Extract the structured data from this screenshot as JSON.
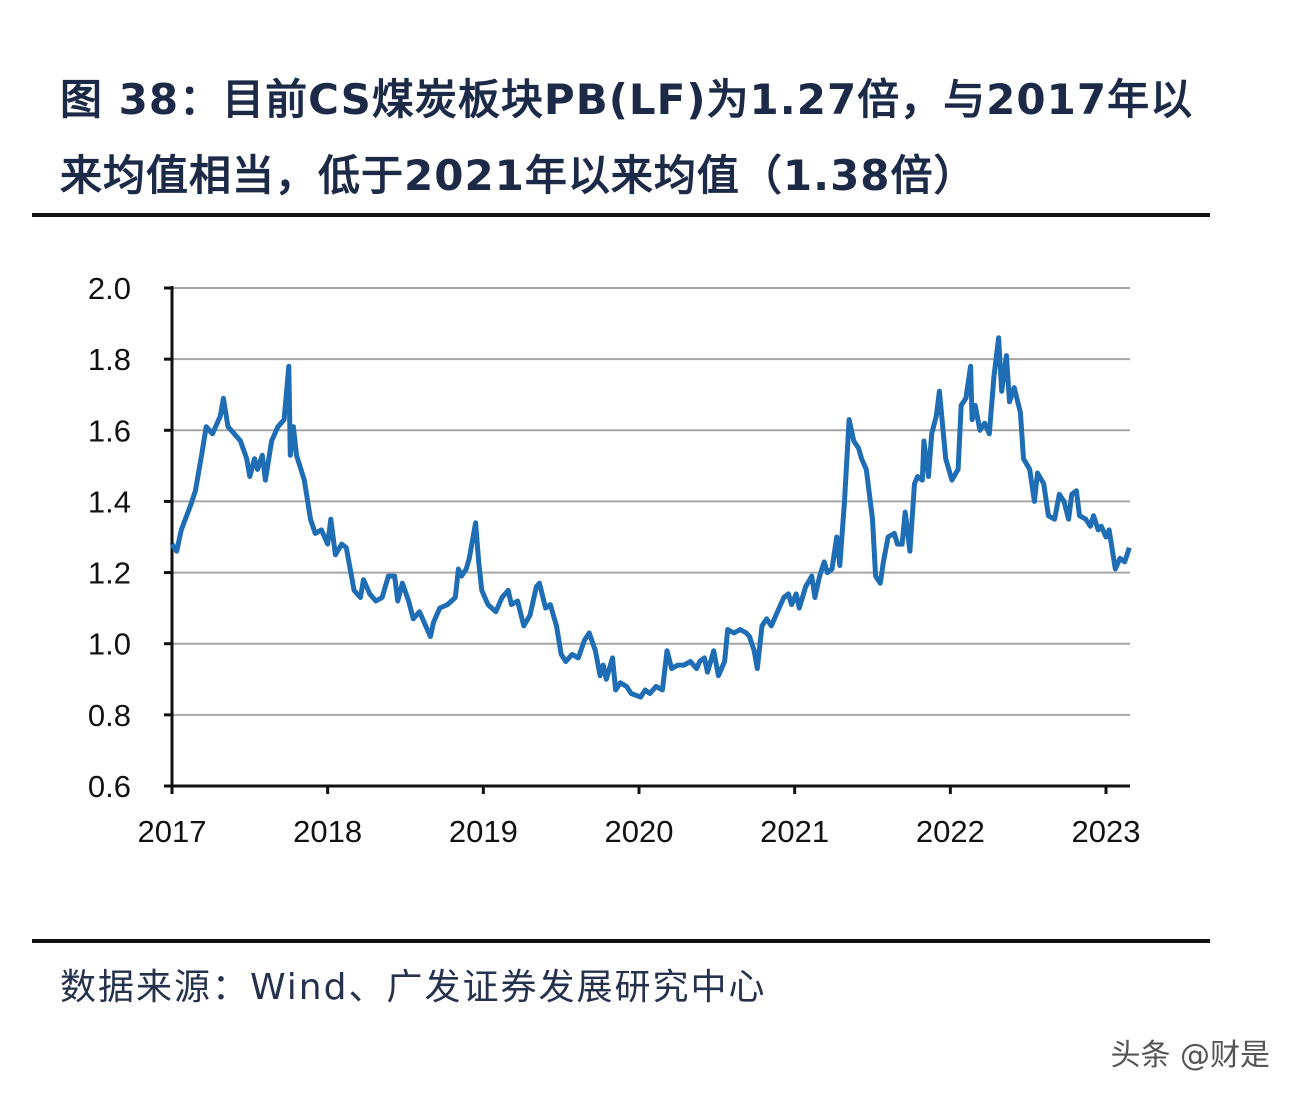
{
  "title": "图 38：目前CS煤炭板块PB(LF)为1.27倍，与2017年以来均值相当，低于2021年以来均值（1.38倍）",
  "source": "数据来源：Wind、广发证券发展研究中心",
  "watermark": "头条 @财是",
  "chart_data": {
    "type": "line",
    "title": "",
    "xlabel": "",
    "ylabel": "",
    "xlim": [
      2017,
      2023.16
    ],
    "ylim": [
      0.6,
      2.0
    ],
    "grid": true,
    "line_color": "#1f6db5",
    "x_ticks": [
      "2017",
      "2018",
      "2019",
      "2020",
      "2021",
      "2022",
      "2023"
    ],
    "y_ticks": [
      "0.6",
      "0.8",
      "1.0",
      "1.2",
      "1.4",
      "1.6",
      "1.8",
      "2.0"
    ],
    "x": [
      2017.0,
      2017.03,
      2017.06,
      2017.12,
      2017.15,
      2017.19,
      2017.22,
      2017.26,
      2017.28,
      2017.31,
      2017.33,
      2017.36,
      2017.4,
      2017.44,
      2017.48,
      2017.5,
      2017.53,
      2017.55,
      2017.58,
      2017.6,
      2017.64,
      2017.68,
      2017.72,
      2017.75,
      2017.76,
      2017.78,
      2017.8,
      2017.85,
      2017.89,
      2017.92,
      2017.96,
      2018.0,
      2018.02,
      2018.05,
      2018.09,
      2018.12,
      2018.17,
      2018.21,
      2018.23,
      2018.27,
      2018.31,
      2018.35,
      2018.39,
      2018.43,
      2018.45,
      2018.48,
      2018.52,
      2018.55,
      2018.59,
      2018.63,
      2018.66,
      2018.68,
      2018.72,
      2018.77,
      2018.82,
      2018.84,
      2018.86,
      2018.89,
      2018.91,
      2018.95,
      2018.97,
      2018.99,
      2019.03,
      2019.08,
      2019.12,
      2019.16,
      2019.18,
      2019.22,
      2019.26,
      2019.3,
      2019.34,
      2019.36,
      2019.4,
      2019.43,
      2019.47,
      2019.5,
      2019.53,
      2019.57,
      2019.61,
      2019.65,
      2019.68,
      2019.72,
      2019.75,
      2019.77,
      2019.79,
      2019.83,
      2019.85,
      2019.88,
      2019.92,
      2019.95,
      2020.01,
      2020.04,
      2020.07,
      2020.11,
      2020.15,
      2020.18,
      2020.21,
      2020.25,
      2020.29,
      2020.33,
      2020.37,
      2020.39,
      2020.42,
      2020.44,
      2020.48,
      2020.51,
      2020.55,
      2020.57,
      2020.61,
      2020.65,
      2020.69,
      2020.71,
      2020.74,
      2020.76,
      2020.79,
      2020.82,
      2020.85,
      2020.89,
      2020.93,
      2020.96,
      2020.98,
      2021.01,
      2021.03,
      2021.07,
      2021.11,
      2021.13,
      2021.16,
      2021.19,
      2021.21,
      2021.24,
      2021.27,
      2021.29,
      2021.32,
      2021.35,
      2021.38,
      2021.41,
      2021.43,
      2021.46,
      2021.5,
      2021.52,
      2021.55,
      2021.57,
      2021.6,
      2021.64,
      2021.66,
      2021.69,
      2021.71,
      2021.74,
      2021.77,
      2021.79,
      2021.82,
      2021.83,
      2021.86,
      2021.88,
      2021.91,
      2021.93,
      2021.97,
      2022.01,
      2022.05,
      2022.07,
      2022.1,
      2022.13,
      2022.14,
      2022.16,
      2022.19,
      2022.22,
      2022.25,
      2022.28,
      2022.31,
      2022.33,
      2022.36,
      2022.38,
      2022.41,
      2022.45,
      2022.47,
      2022.51,
      2022.54,
      2022.56,
      2022.6,
      2022.63,
      2022.67,
      2022.7,
      2022.73,
      2022.76,
      2022.78,
      2022.81,
      2022.83,
      2022.87,
      2022.9,
      2022.92,
      2022.95,
      2022.97,
      2023.0,
      2023.02,
      2023.06,
      2023.09,
      2023.12,
      2023.15
    ],
    "y": [
      1.28,
      1.26,
      1.32,
      1.39,
      1.43,
      1.53,
      1.61,
      1.59,
      1.61,
      1.64,
      1.69,
      1.61,
      1.59,
      1.57,
      1.52,
      1.47,
      1.52,
      1.49,
      1.53,
      1.46,
      1.57,
      1.61,
      1.63,
      1.78,
      1.53,
      1.61,
      1.53,
      1.46,
      1.35,
      1.31,
      1.32,
      1.28,
      1.35,
      1.25,
      1.28,
      1.27,
      1.15,
      1.13,
      1.18,
      1.14,
      1.12,
      1.13,
      1.19,
      1.19,
      1.12,
      1.17,
      1.12,
      1.07,
      1.09,
      1.05,
      1.02,
      1.06,
      1.1,
      1.11,
      1.13,
      1.21,
      1.19,
      1.21,
      1.24,
      1.34,
      1.23,
      1.15,
      1.11,
      1.09,
      1.13,
      1.15,
      1.11,
      1.12,
      1.05,
      1.08,
      1.16,
      1.17,
      1.1,
      1.11,
      1.05,
      0.97,
      0.95,
      0.97,
      0.96,
      1.01,
      1.03,
      0.98,
      0.91,
      0.94,
      0.9,
      0.96,
      0.87,
      0.89,
      0.88,
      0.86,
      0.85,
      0.87,
      0.86,
      0.88,
      0.87,
      0.98,
      0.93,
      0.94,
      0.94,
      0.95,
      0.93,
      0.95,
      0.96,
      0.92,
      0.98,
      0.91,
      0.95,
      1.04,
      1.03,
      1.04,
      1.03,
      1.02,
      0.98,
      0.93,
      1.05,
      1.07,
      1.05,
      1.09,
      1.13,
      1.14,
      1.11,
      1.14,
      1.1,
      1.16,
      1.19,
      1.13,
      1.19,
      1.23,
      1.2,
      1.21,
      1.3,
      1.22,
      1.4,
      1.63,
      1.57,
      1.55,
      1.52,
      1.49,
      1.35,
      1.19,
      1.17,
      1.23,
      1.3,
      1.31,
      1.28,
      1.28,
      1.37,
      1.26,
      1.45,
      1.47,
      1.46,
      1.57,
      1.47,
      1.59,
      1.64,
      1.71,
      1.52,
      1.46,
      1.49,
      1.67,
      1.69,
      1.78,
      1.63,
      1.67,
      1.6,
      1.62,
      1.59,
      1.75,
      1.86,
      1.71,
      1.81,
      1.68,
      1.72,
      1.65,
      1.52,
      1.49,
      1.4,
      1.48,
      1.45,
      1.36,
      1.35,
      1.42,
      1.4,
      1.35,
      1.42,
      1.43,
      1.36,
      1.35,
      1.33,
      1.36,
      1.32,
      1.33,
      1.3,
      1.32,
      1.21,
      1.24,
      1.23,
      1.27
    ]
  }
}
